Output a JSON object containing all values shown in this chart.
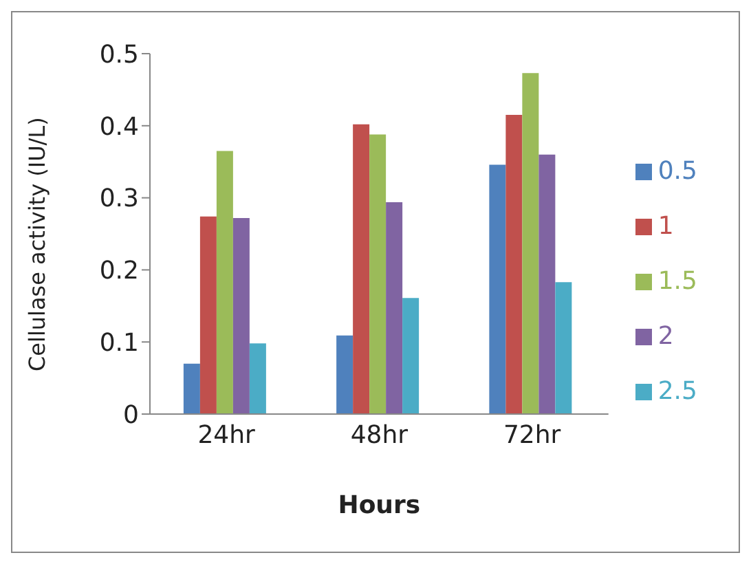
{
  "chart_data": {
    "type": "bar",
    "xlabel": "Hours",
    "ylabel": "Cellulase activity (IU/L)",
    "categories": [
      "24hr",
      "48hr",
      "72hr"
    ],
    "series": [
      {
        "name": "0.5",
        "color": "#4f81bd",
        "values": [
          0.07,
          0.109,
          0.346
        ]
      },
      {
        "name": "1",
        "color": "#c0504d",
        "values": [
          0.274,
          0.402,
          0.415
        ]
      },
      {
        "name": "1.5",
        "color": "#9bbb59",
        "values": [
          0.365,
          0.388,
          0.473
        ]
      },
      {
        "name": "2",
        "color": "#8064a2",
        "values": [
          0.272,
          0.294,
          0.36
        ]
      },
      {
        "name": "2.5",
        "color": "#4bacc6",
        "values": [
          0.098,
          0.161,
          0.183
        ]
      }
    ],
    "ylim": [
      0,
      0.5
    ],
    "yticks": [
      0,
      0.1,
      0.2,
      0.3,
      0.4,
      0.5
    ],
    "grid": false,
    "legend": "right"
  }
}
